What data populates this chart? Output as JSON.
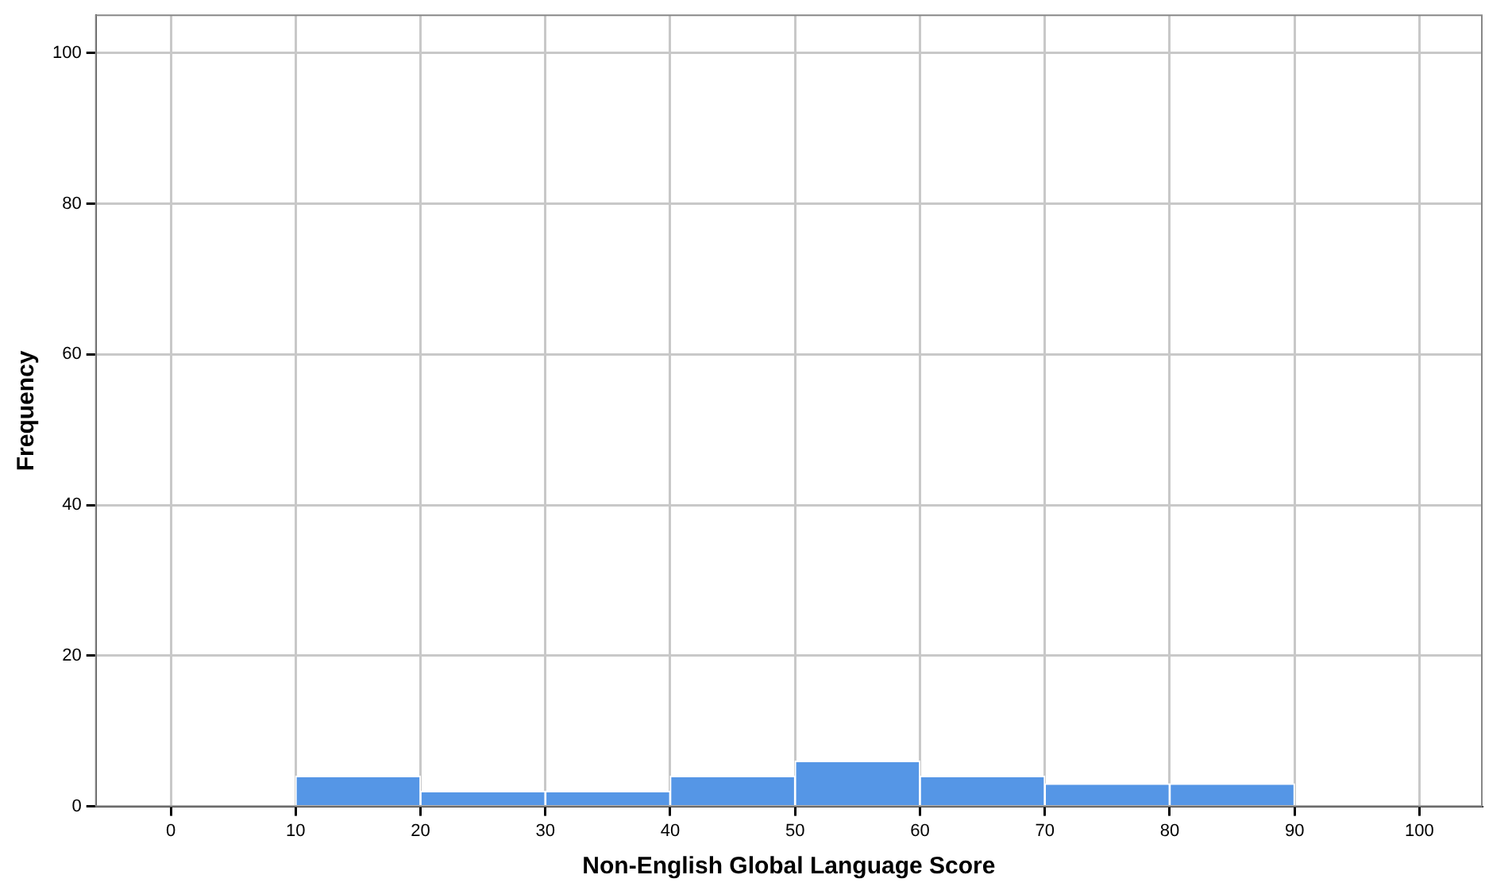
{
  "chart_data": {
    "type": "histogram",
    "xlabel": "Non-English Global Language Score",
    "ylabel": "Frequency",
    "bins": [
      10,
      20,
      30,
      40,
      50,
      60,
      70,
      80,
      90
    ],
    "values": [
      4,
      2,
      2,
      4,
      6,
      4,
      3,
      3
    ],
    "color": "#5596e6",
    "xlim": [
      -6,
      105
    ],
    "xticks": [
      0,
      10,
      20,
      30,
      40,
      50,
      60,
      70,
      80,
      90,
      100
    ],
    "ylim": [
      0,
      105
    ],
    "yticks": [
      0,
      20,
      40,
      60,
      80,
      100
    ],
    "grid": true,
    "legend": false
  }
}
